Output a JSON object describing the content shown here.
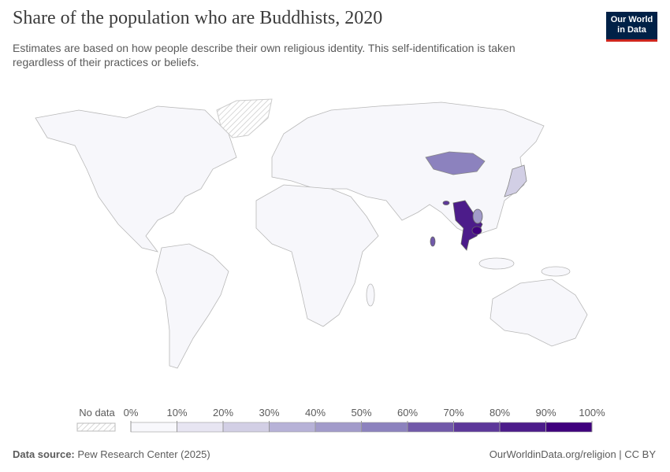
{
  "header": {
    "title": "Share of the population who are Buddhists, 2020",
    "subtitle": "Estimates are based on how people describe their own religious identity. This self-identification is taken regardless of their practices or beliefs.",
    "logo": [
      "Our World",
      "in Data"
    ]
  },
  "legend": {
    "no_data": "No data",
    "ticks": [
      {
        "value": 0,
        "label": "0%"
      },
      {
        "value": 10,
        "label": "10%"
      },
      {
        "value": 20,
        "label": "20%"
      },
      {
        "value": 30,
        "label": "30%"
      },
      {
        "value": 40,
        "label": "40%"
      },
      {
        "value": 50,
        "label": "50%"
      },
      {
        "value": 60,
        "label": "60%"
      },
      {
        "value": 70,
        "label": "70%"
      },
      {
        "value": 80,
        "label": "80%"
      },
      {
        "value": 90,
        "label": "90%"
      },
      {
        "value": 100,
        "label": "100%"
      }
    ],
    "colors": [
      "#f8f8fc",
      "#e7e5f2",
      "#d2cfe5",
      "#b7b2d7",
      "#a29bca",
      "#8c82be",
      "#7159a9",
      "#5d389a",
      "#4c1c8a",
      "#3f007d"
    ]
  },
  "footer": {
    "source_label": "Data source:",
    "source": "Pew Research Center (2025)",
    "license": "OurWorldinData.org/religion | CC BY"
  }
}
